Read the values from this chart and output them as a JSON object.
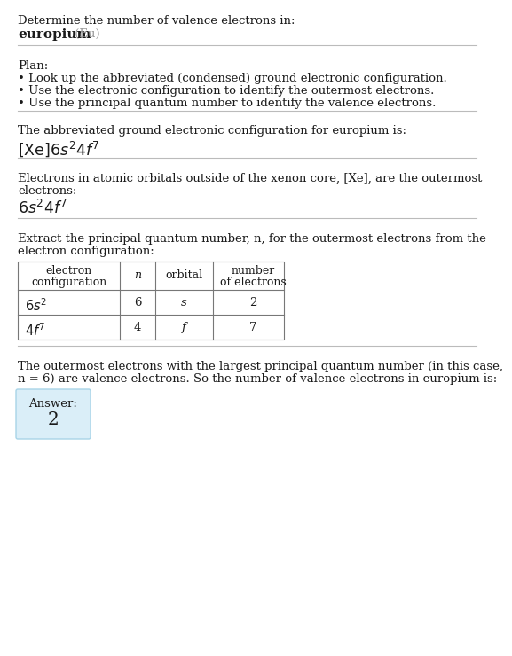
{
  "title_line1": "Determine the number of valence electrons in:",
  "title_line2_bold": "europium",
  "title_line2_gray": " (Eu)",
  "section1_title": "Plan:",
  "section1_bullets": [
    "• Look up the abbreviated (condensed) ground electronic configuration.",
    "• Use the electronic configuration to identify the outermost electrons.",
    "• Use the principal quantum number to identify the valence electrons."
  ],
  "section2_line1": "The abbreviated ground electronic configuration for europium is:",
  "section3_line1": "Electrons in atomic orbitals outside of the xenon core, [Xe], are the outermost",
  "section3_line2": "electrons:",
  "section4_line1": "Extract the principal quantum number, n, for the outermost electrons from the",
  "section4_line2": "electron configuration:",
  "section5_line1": "The outermost electrons with the largest principal quantum number (in this case,",
  "section5_line2": "n = 6) are valence electrons. So the number of valence electrons in europium is:",
  "answer_label": "Answer:",
  "answer_value": "2",
  "bg_color": "#ffffff",
  "text_color": "#1a1a1a",
  "gray_color": "#999999",
  "line_color": "#bbbbbb",
  "answer_box_color": "#daeef8",
  "answer_box_border": "#a8d4e8",
  "table_border_color": "#777777",
  "fs": 9.5,
  "lh": 14
}
